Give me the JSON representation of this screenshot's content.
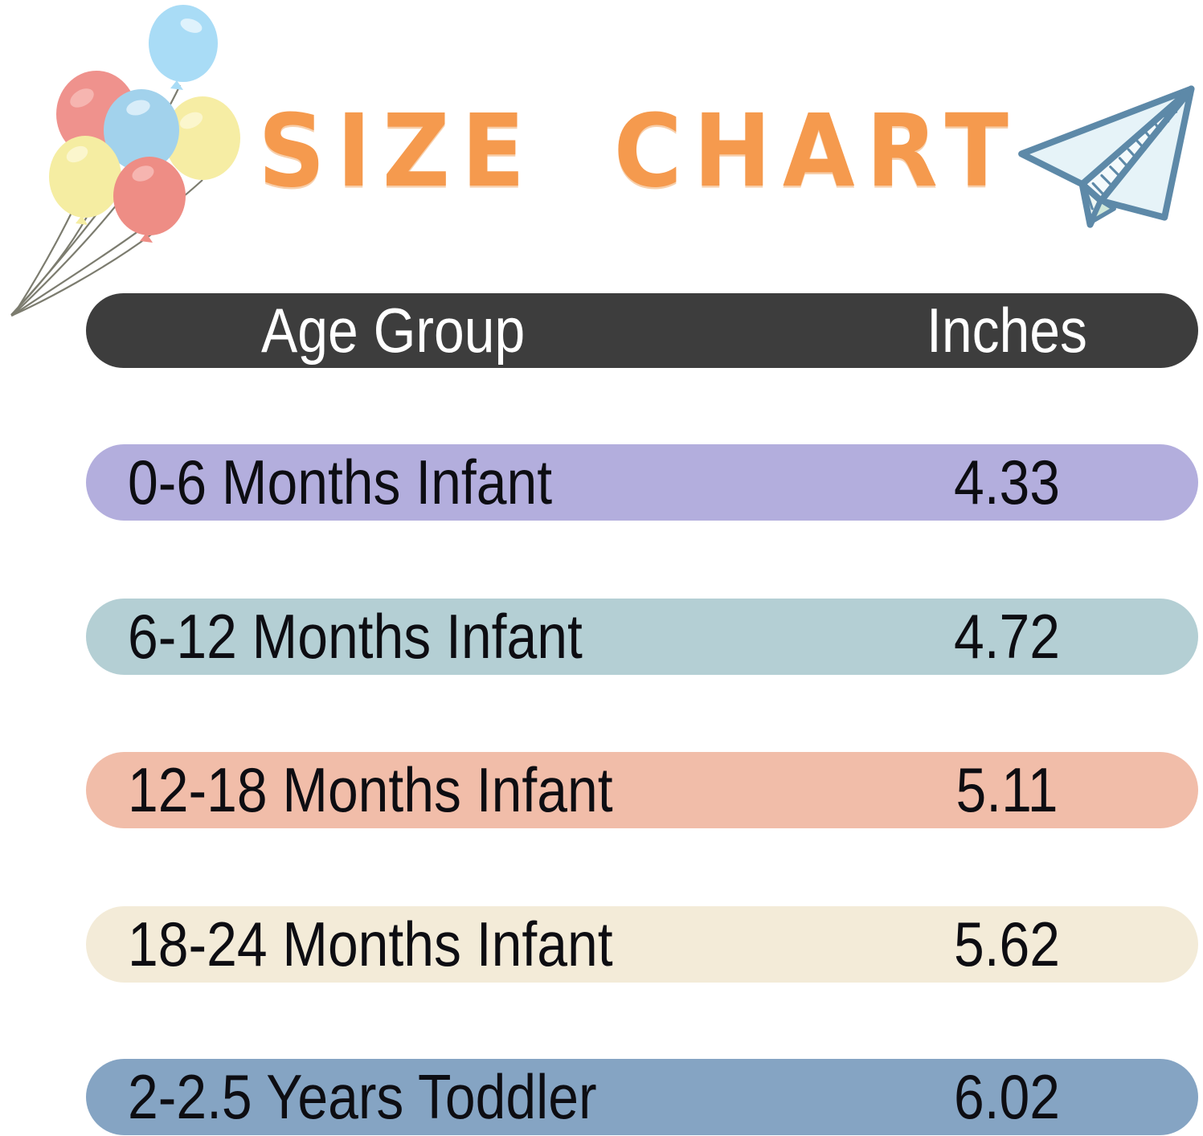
{
  "title": "SIZE CHART",
  "accent_colors": {
    "title_orange": "#f59a4e",
    "header_bg": "#3d3d3d",
    "header_text": "#ffffff"
  },
  "decorations": {
    "balloons": "balloon-bunch-illustration",
    "plane": "paper-airplane-illustration"
  },
  "table": {
    "header": {
      "age_group": "Age Group",
      "inches": "Inches"
    },
    "rows": [
      {
        "age_group": "0-6 Months Infant",
        "inches": "4.33",
        "color": "#b3aedd"
      },
      {
        "age_group": "6-12 Months Infant",
        "inches": "4.72",
        "color": "#b4cfd4"
      },
      {
        "age_group": "12-18 Months Infant",
        "inches": "5.11",
        "color": "#f1bda9"
      },
      {
        "age_group": "18-24 Months Infant",
        "inches": "5.62",
        "color": "#f3ebd8"
      },
      {
        "age_group": "2-2.5 Years Toddler",
        "inches": "6.02",
        "color": "#85a4c3"
      }
    ]
  },
  "chart_data": {
    "type": "table",
    "title": "SIZE CHART",
    "columns": [
      "Age Group",
      "Inches"
    ],
    "rows": [
      [
        "0-6 Months Infant",
        4.33
      ],
      [
        "6-12 Months Infant",
        4.72
      ],
      [
        "12-18 Months Infant",
        5.11
      ],
      [
        "18-24 Months Infant",
        5.62
      ],
      [
        "2-2.5 Years Toddler",
        6.02
      ]
    ]
  }
}
